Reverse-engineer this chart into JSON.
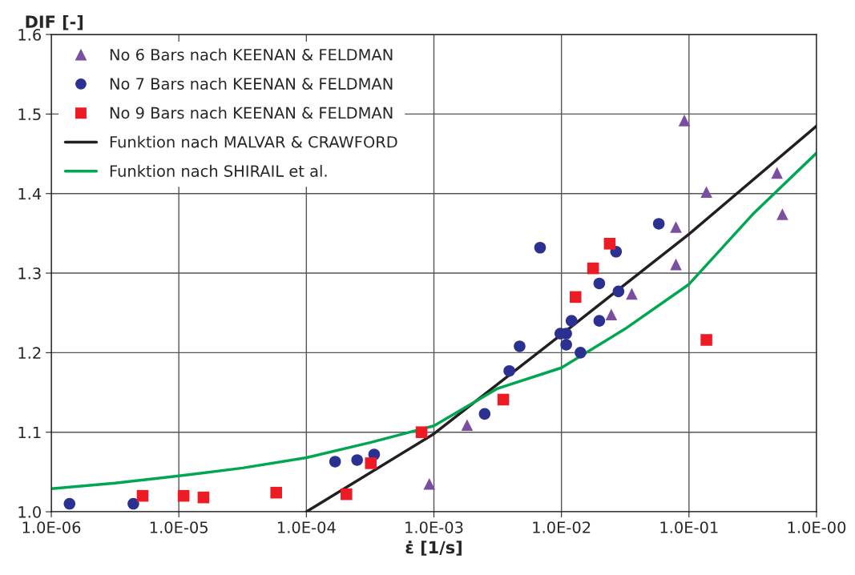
{
  "chart_data": {
    "type": "scatter",
    "xlabel": "ε̇ [1/s]",
    "ylabel": "DIF [-]",
    "log": "x",
    "xlim": [
      1e-06,
      1
    ],
    "xticks": [
      {
        "value": 1e-06,
        "label": "1.0E-06"
      },
      {
        "value": 1e-05,
        "label": "1.0E-05"
      },
      {
        "value": 0.0001,
        "label": "1.0E-04"
      },
      {
        "value": 0.001,
        "label": "1.0E-03"
      },
      {
        "value": 0.01,
        "label": "1.0E-02"
      },
      {
        "value": 0.1,
        "label": "1.0E-01"
      },
      {
        "value": 1,
        "label": "1.0E-00"
      }
    ],
    "ylim": [
      1.0,
      1.6
    ],
    "yticks": [
      {
        "value": 1.0,
        "label": "1.0"
      },
      1.1,
      1.2,
      1.3,
      1.4,
      1.5,
      {
        "value": 1.6,
        "label": "1.6"
      }
    ],
    "grid": true,
    "legend": "top left",
    "series": [
      {
        "name": "No 6 Bars nach KEENAN & FELDMAN",
        "marker": "triangle",
        "color": "#7b4fa0",
        "x": [
          0.00092,
          0.00182,
          0.0246,
          0.0356,
          0.079,
          0.079,
          0.092,
          0.137,
          0.49,
          0.54
        ],
        "values": [
          1.035,
          1.109,
          1.248,
          1.274,
          1.358,
          1.311,
          1.492,
          1.402,
          1.426,
          1.374
        ]
      },
      {
        "name": "No 7 Bars nach KEENAN & FELDMAN",
        "marker": "circle",
        "color": "#2b3190",
        "x": [
          1.39e-06,
          4.4e-06,
          0.000168,
          0.00025,
          0.00034,
          0.0025,
          0.0039,
          0.0047,
          0.0068,
          0.0098,
          0.0109,
          0.0109,
          0.012,
          0.0141,
          0.0198,
          0.0198,
          0.028,
          0.0268,
          0.058
        ],
        "values": [
          1.01,
          1.01,
          1.063,
          1.065,
          1.072,
          1.123,
          1.177,
          1.208,
          1.332,
          1.224,
          1.224,
          1.21,
          1.24,
          1.2,
          1.24,
          1.287,
          1.277,
          1.327,
          1.362
        ]
      },
      {
        "name": "No 9 Bars nach KEENAN & FELDMAN",
        "marker": "square",
        "color": "#ed1c24",
        "x": [
          5.2e-06,
          1.09e-05,
          1.56e-05,
          5.8e-05,
          0.000206,
          0.00032,
          0.0008,
          0.0035,
          0.0129,
          0.0177,
          0.0239,
          0.137
        ],
        "values": [
          1.02,
          1.02,
          1.018,
          1.024,
          1.022,
          1.061,
          1.1,
          1.141,
          1.27,
          1.306,
          1.337,
          1.216
        ]
      },
      {
        "name": "Funktion nach MALVAR & CRAWFORD",
        "type": "line",
        "marker": "none",
        "color": "#231f20",
        "x": [
          0.0001,
          0.001,
          0.01,
          0.1,
          1
        ],
        "values": [
          1.0,
          1.098,
          1.223,
          1.349,
          1.485
        ]
      },
      {
        "name": "Funktion nach SHIRAIL et al.",
        "type": "line",
        "marker": "none",
        "color": "#00a650",
        "x": [
          1e-06,
          3.16e-06,
          1e-05,
          3.16e-05,
          0.0001,
          0.000316,
          0.001,
          0.00316,
          0.01,
          0.0316,
          0.1,
          0.316,
          1
        ],
        "values": [
          1.029,
          1.036,
          1.045,
          1.055,
          1.068,
          1.087,
          1.108,
          1.155,
          1.181,
          1.23,
          1.286,
          1.374,
          1.451
        ]
      }
    ]
  }
}
